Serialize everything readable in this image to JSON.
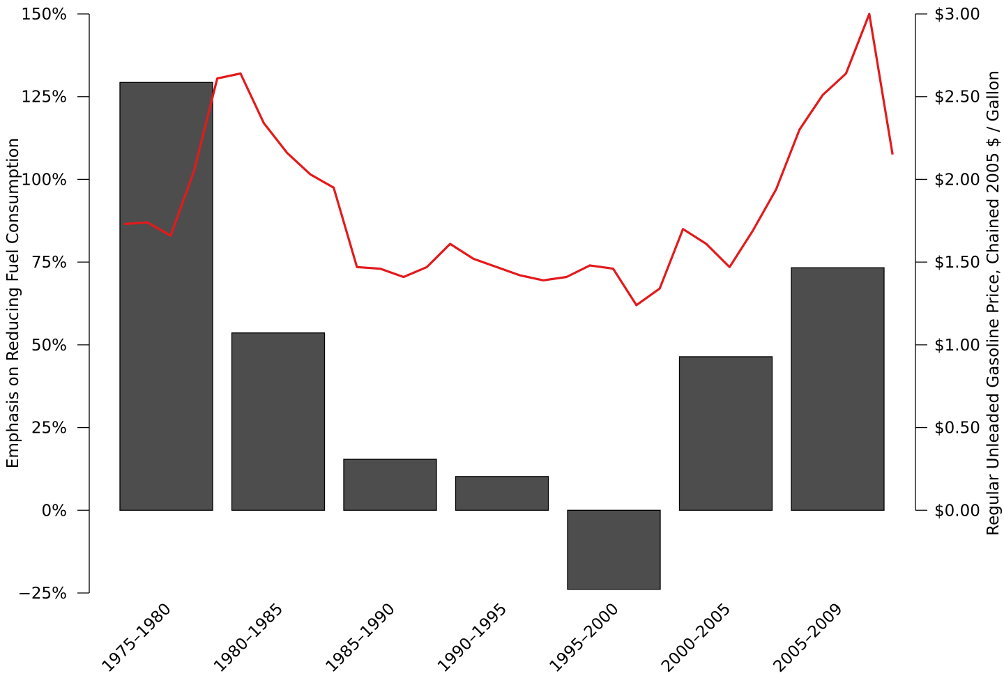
{
  "chart_data": {
    "type": "bar",
    "categories": [
      "1975–1980",
      "1980–1985",
      "1985–1990",
      "1990–1995",
      "1995–2000",
      "2000–2005",
      "2005–2009"
    ],
    "bars": {
      "values": [
        129.3,
        53.6,
        15.4,
        10.2,
        -23.9,
        46.4,
        73.3
      ],
      "color": "#4d4d4d"
    },
    "line": {
      "color": "#e31a1c",
      "x": [
        1976,
        1977,
        1978,
        1979,
        1980,
        1981,
        1982,
        1983,
        1984,
        1985,
        1986,
        1987,
        1988,
        1989,
        1990,
        1991,
        1992,
        1993,
        1994,
        1995,
        1996,
        1997,
        1998,
        1999,
        2000,
        2001,
        2002,
        2003,
        2004,
        2005,
        2006,
        2007,
        2008,
        2009
      ],
      "values": [
        1.73,
        1.74,
        1.66,
        2.05,
        2.61,
        2.64,
        2.34,
        2.16,
        2.03,
        1.95,
        1.47,
        1.46,
        1.41,
        1.47,
        1.61,
        1.52,
        1.47,
        1.42,
        1.39,
        1.41,
        1.48,
        1.46,
        1.24,
        1.34,
        1.7,
        1.61,
        1.47,
        1.69,
        1.94,
        2.3,
        2.51,
        2.64,
        3.0,
        2.15
      ]
    },
    "y_left": {
      "label": "Emphasis on Reducing Fuel Consumption",
      "ylim": [
        -25,
        150
      ],
      "ticks": [
        -25,
        0,
        25,
        50,
        75,
        100,
        125,
        150
      ],
      "tick_labels": [
        "−25%",
        "0%",
        "25%",
        "50%",
        "75%",
        "100%",
        "125%",
        "150%"
      ]
    },
    "y_right": {
      "label": "Regular Unleaded Gasoline Price, Chained 2005 $ / Gallon",
      "ylim": [
        0,
        3
      ],
      "ticks": [
        0,
        0.5,
        1,
        1.5,
        2,
        2.5,
        3
      ],
      "tick_labels": [
        "$0.00",
        "$0.50",
        "$1.00",
        "$1.50",
        "$2.00",
        "$2.50",
        "$3.00"
      ]
    },
    "grid": false,
    "legend": "none"
  }
}
